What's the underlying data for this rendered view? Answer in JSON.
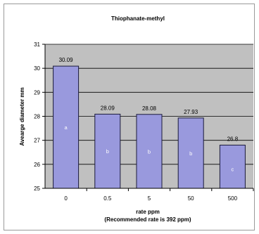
{
  "chart_data": {
    "type": "bar",
    "title": "Thiophanate-methyl",
    "categories": [
      "0",
      "0.5",
      "5",
      "50",
      "500"
    ],
    "values": [
      30.09,
      28.09,
      28.08,
      27.93,
      26.8
    ],
    "value_labels": [
      "30.09",
      "28.09",
      "28.08",
      "27.93",
      "26.8"
    ],
    "group_letters": [
      "a",
      "b",
      "b",
      "b",
      "c"
    ],
    "ylabel": "Avearge diameter mm",
    "xlabel": "rate ppm",
    "xlabel_sub": "(Recommended rate is 392 ppm)",
    "ylim": [
      25,
      31
    ],
    "yticks": [
      "25",
      "26",
      "27",
      "28",
      "29",
      "30",
      "31"
    ],
    "grid": true,
    "colors": {
      "plot_background": "#c0c0c0",
      "bar_fill": "#9999dd",
      "bar_edge": "#1a1a3a",
      "gridline": "#000000"
    }
  }
}
